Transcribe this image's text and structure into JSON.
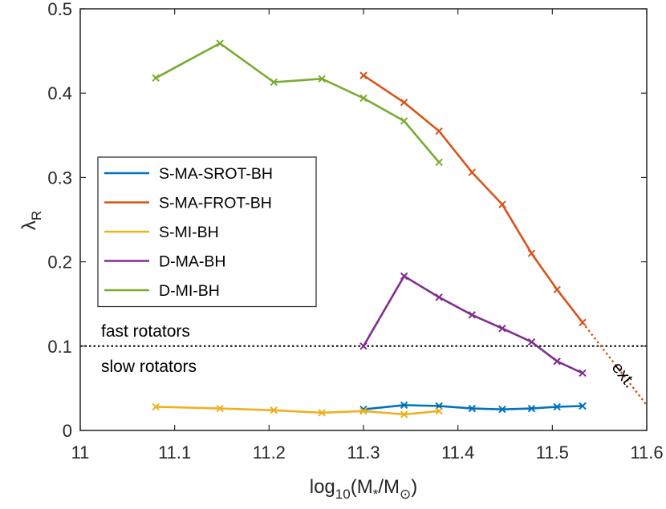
{
  "chart_data": {
    "type": "line",
    "xlabel": {
      "base": "log",
      "sub": "10",
      "open": "(M",
      "sub2": "*",
      "slash": "/M",
      "sub3": "⊙",
      "close": ")"
    },
    "ylabel": {
      "base": "λ",
      "sub": "R"
    },
    "xlim": [
      11,
      11.6
    ],
    "ylim": [
      0,
      0.5
    ],
    "xticks": [
      "11",
      "11.1",
      "11.2",
      "11.3",
      "11.4",
      "11.5",
      "11.6"
    ],
    "yticks": [
      "0",
      "0.1",
      "0.2",
      "0.3",
      "0.4",
      "0.5"
    ],
    "series": [
      {
        "name": "S-MA-SROT-BH",
        "color": "#0072BD",
        "x": [
          11.3,
          11.343,
          11.38,
          11.415,
          11.447,
          11.478,
          11.505,
          11.532
        ],
        "y": [
          0.025,
          0.03,
          0.029,
          0.026,
          0.025,
          0.026,
          0.028,
          0.029
        ]
      },
      {
        "name": "S-MA-FROT-BH",
        "color": "#D95319",
        "x": [
          11.3,
          11.343,
          11.38,
          11.415,
          11.447,
          11.478,
          11.505,
          11.532
        ],
        "y": [
          0.421,
          0.389,
          0.355,
          0.306,
          0.268,
          0.21,
          0.167,
          0.128
        ]
      },
      {
        "name": "S-MI-BH",
        "color": "#EDB120",
        "x": [
          11.08,
          11.148,
          11.205,
          11.256,
          11.3,
          11.343,
          11.38
        ],
        "y": [
          0.028,
          0.026,
          0.024,
          0.021,
          0.023,
          0.019,
          0.023
        ]
      },
      {
        "name": "D-MA-BH",
        "color": "#7E2F8E",
        "x": [
          11.3,
          11.343,
          11.38,
          11.415,
          11.447,
          11.478,
          11.505,
          11.532
        ],
        "y": [
          0.1,
          0.183,
          0.158,
          0.137,
          0.121,
          0.105,
          0.082,
          0.068
        ]
      },
      {
        "name": "D-MI-BH",
        "color": "#77AC30",
        "x": [
          11.08,
          11.148,
          11.205,
          11.256,
          11.3,
          11.343,
          11.38
        ],
        "y": [
          0.418,
          0.459,
          0.413,
          0.417,
          0.394,
          0.367,
          0.318
        ]
      }
    ],
    "threshold": {
      "y": 0.1,
      "above_label": "fast rotators",
      "below_label": "slow rotators",
      "color": "#000000"
    },
    "extrapolation": {
      "label": "ext.",
      "color": "#D95319",
      "x": [
        11.532,
        11.6
      ],
      "y": [
        0.128,
        0.03
      ]
    },
    "legend_position": "center-left"
  }
}
